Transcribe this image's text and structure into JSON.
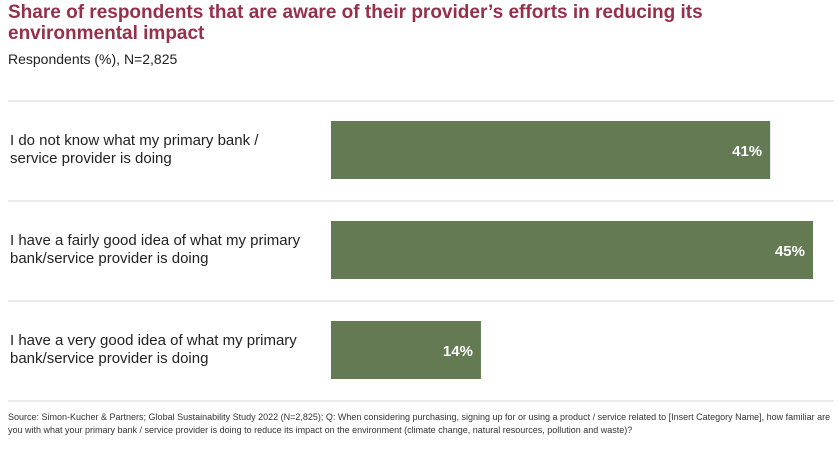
{
  "header": {
    "title": "Share of respondents that are aware of their provider’s efforts in reducing its environmental impact",
    "subtitle": "Respondents (%), N=2,825"
  },
  "chart_data": {
    "type": "bar",
    "orientation": "horizontal",
    "categories": [
      [
        "I do not know what my primary bank /",
        "service provider is doing"
      ],
      [
        "I have a fairly good idea of what my primary",
        "bank/service provider is doing"
      ],
      [
        "I have a very good idea of what my primary",
        "bank/service provider is doing"
      ]
    ],
    "values": [
      41,
      45,
      14
    ],
    "value_labels": [
      "41%",
      "45%",
      "14%"
    ],
    "unit": "%",
    "xlim": [
      0,
      45
    ],
    "bar_color": "#637a52",
    "label_color": "#ffffff",
    "grid": false,
    "legend": "none"
  },
  "footer": {
    "source": "Source: Simon-Kucher & Partners; Global Sustainability Study 2022 (N=2,825); Q: When considering purchasing, signing up for or using a product / service related to [Insert Category Name], how familiar are you with what your primary bank / service provider is doing to reduce its impact on the environment (climate change, natural resources, pollution and waste)?"
  }
}
